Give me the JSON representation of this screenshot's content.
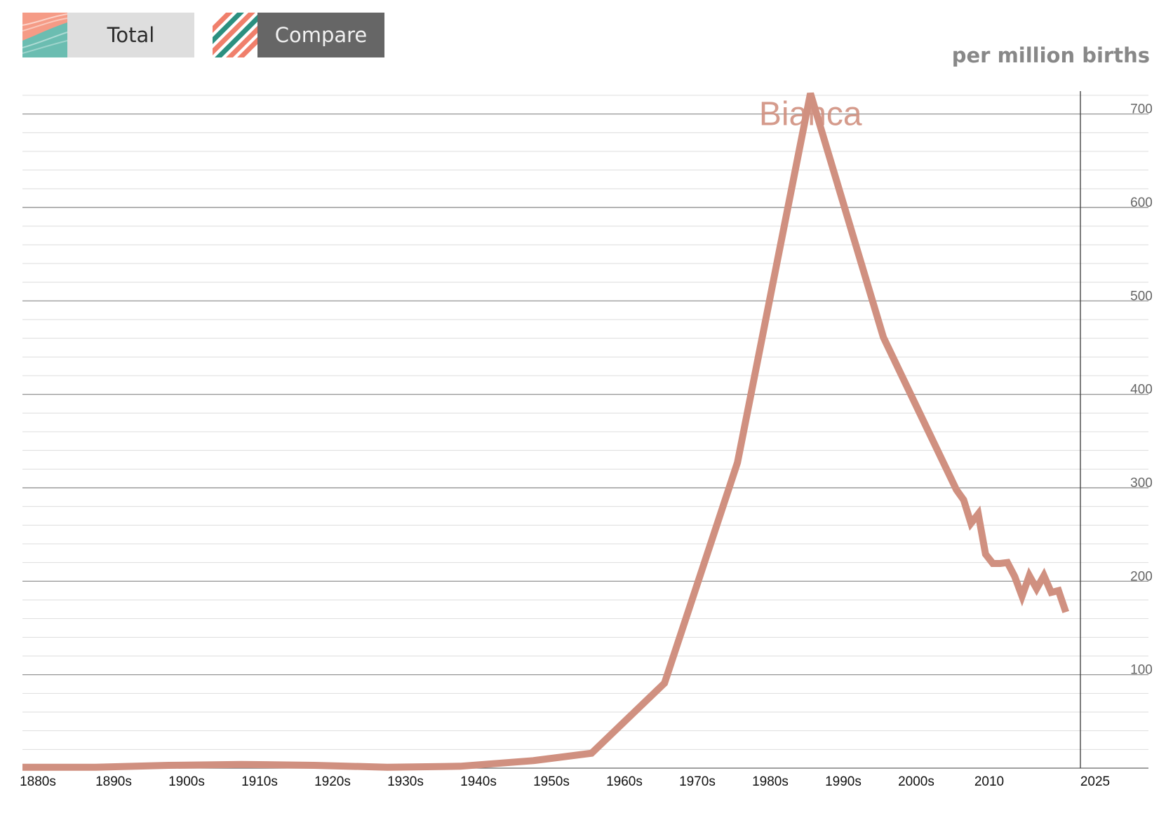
{
  "controls": {
    "total_label": "Total",
    "compare_label": "Compare"
  },
  "colors": {
    "series": "#d09080",
    "coral": "#f07f6b",
    "teal": "#5fbcb0",
    "dark_teal": "#2b8f7f",
    "grid_major": "#888888",
    "grid_minor": "#dddddd"
  },
  "icons": {
    "total": "stacked-area-swatch-icon",
    "compare": "diagonal-stripes-swatch-icon"
  },
  "chart_data": {
    "type": "line",
    "unit_label": "per million births",
    "ylim": [
      0,
      720
    ],
    "y_ticks": [
      100,
      200,
      300,
      400,
      500,
      600,
      700
    ],
    "xlim": [
      1880,
      2025
    ],
    "x_ticks": [
      {
        "value": 1880,
        "label": "1880s"
      },
      {
        "value": 1890,
        "label": "1890s"
      },
      {
        "value": 1900,
        "label": "1900s"
      },
      {
        "value": 1910,
        "label": "1910s"
      },
      {
        "value": 1920,
        "label": "1920s"
      },
      {
        "value": 1930,
        "label": "1930s"
      },
      {
        "value": 1940,
        "label": "1940s"
      },
      {
        "value": 1950,
        "label": "1950s"
      },
      {
        "value": 1960,
        "label": "1960s"
      },
      {
        "value": 1970,
        "label": "1970s"
      },
      {
        "value": 1980,
        "label": "1980s"
      },
      {
        "value": 1990,
        "label": "1990s"
      },
      {
        "value": 2000,
        "label": "2000s"
      },
      {
        "value": 2010,
        "label": "2010"
      },
      {
        "value": 2025,
        "label": "2025"
      }
    ],
    "grid": true,
    "series": [
      {
        "name": "Bianca",
        "x": [
          1880,
          1890,
          1900,
          1910,
          1920,
          1930,
          1940,
          1950,
          1958,
          1968,
          1978,
          1988,
          1998,
          2008,
          2009,
          2010,
          2011,
          2012,
          2013,
          2014,
          2015,
          2016,
          2017,
          2018,
          2019,
          2020,
          2021,
          2022,
          2023
        ],
        "y": [
          1,
          1,
          3,
          4,
          3,
          1,
          2,
          8,
          16,
          91,
          327,
          722,
          461,
          298,
          287,
          262,
          272,
          229,
          219,
          219,
          220,
          205,
          184,
          206,
          192,
          206,
          188,
          190,
          167
        ]
      }
    ]
  }
}
